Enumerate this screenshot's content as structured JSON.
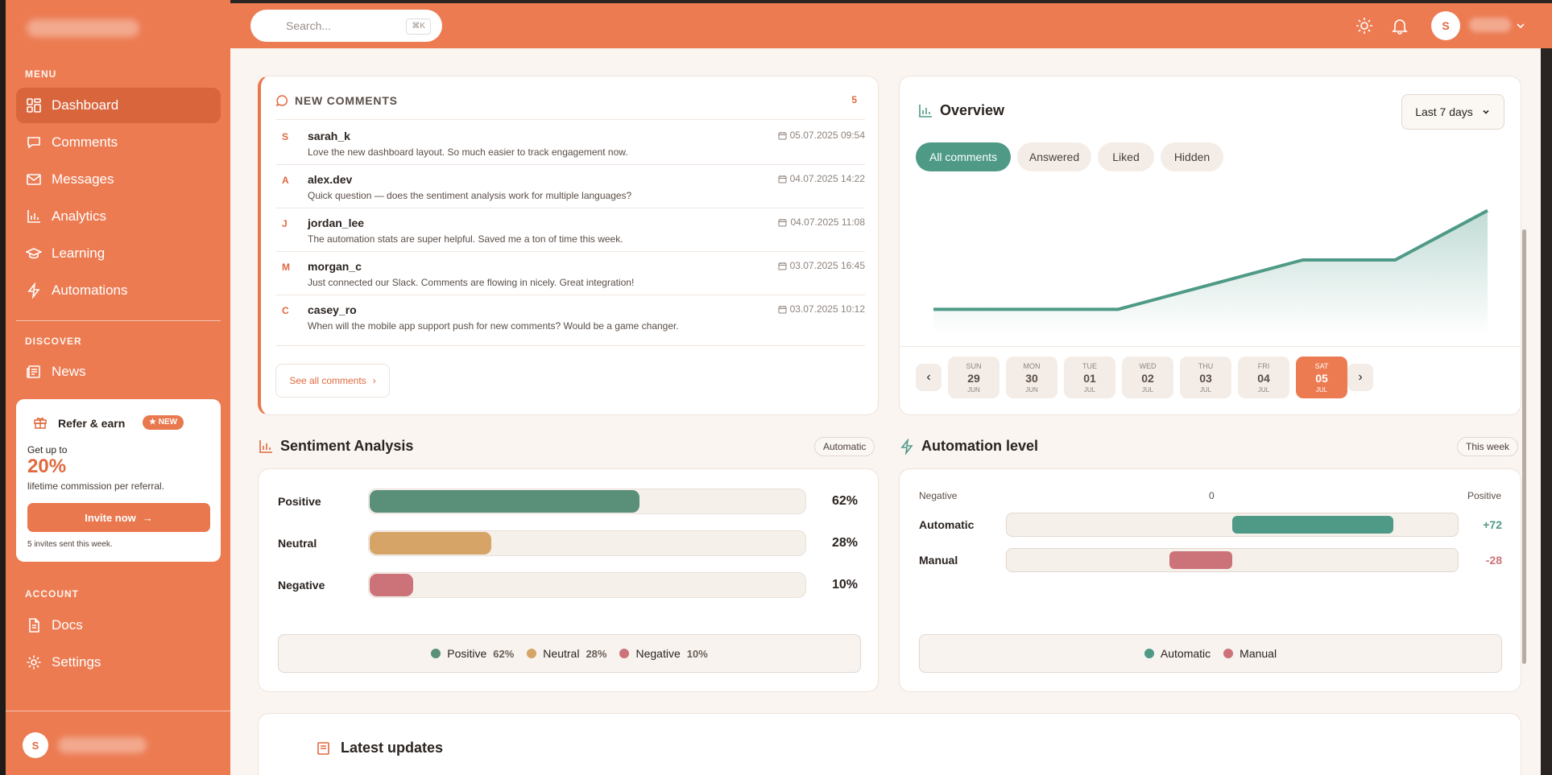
{
  "sidebar": {
    "menu_label": "MENU",
    "discover_label": "DISCOVER",
    "account_label": "ACCOUNT",
    "items": [
      {
        "label": "Dashboard",
        "icon": "dashboard-icon"
      },
      {
        "label": "Comments",
        "icon": "comment-icon"
      },
      {
        "label": "Messages",
        "icon": "mail-icon"
      },
      {
        "label": "Analytics",
        "icon": "bar-chart-icon"
      },
      {
        "label": "Learning",
        "icon": "graduation-cap-icon"
      },
      {
        "label": "Automations",
        "icon": "lightning-icon"
      }
    ],
    "discover_items": [
      {
        "label": "News",
        "icon": "newspaper-icon"
      }
    ],
    "account_items": [
      {
        "label": "Docs",
        "icon": "document-icon"
      },
      {
        "label": "Settings",
        "icon": "gear-icon"
      }
    ],
    "user_initial": "S"
  },
  "refer": {
    "title": "Refer & earn",
    "badge": "★ NEW",
    "line1": "Get up to",
    "percent": "20%",
    "line2": "lifetime commission per referral.",
    "button": "Invite now",
    "note": "5 invites sent this week."
  },
  "topbar": {
    "search_placeholder": "Search...",
    "shortcut": "⌘K",
    "user_initial": "S"
  },
  "comments": {
    "title": "NEW COMMENTS",
    "count": "5",
    "items": [
      {
        "initial": "S",
        "user": "sarah_k",
        "text": "Love the new dashboard layout. So much easier to track engagement now.",
        "date": "05.07.2025 09:54"
      },
      {
        "initial": "A",
        "user": "alex.dev",
        "text": "Quick question — does the sentiment analysis work for multiple languages?",
        "date": "04.07.2025 14:22"
      },
      {
        "initial": "J",
        "user": "jordan_lee",
        "text": "The automation stats are super helpful. Saved me a ton of time this week.",
        "date": "04.07.2025 11:08"
      },
      {
        "initial": "M",
        "user": "morgan_c",
        "text": "Just connected our Slack. Comments are flowing in nicely. Great integration!",
        "date": "03.07.2025 16:45"
      },
      {
        "initial": "C",
        "user": "casey_ro",
        "text": "When will the mobile app support push for new comments? Would be a game changer.",
        "date": "03.07.2025 10:12"
      }
    ],
    "see_all": "See all comments"
  },
  "overview": {
    "title": "Overview",
    "range": "Last 7 days",
    "filters": [
      "All comments",
      "Answered",
      "Liked",
      "Hidden"
    ],
    "active_filter": 0,
    "days": [
      {
        "wd": "SUN",
        "n": "29",
        "m": "JUN"
      },
      {
        "wd": "MON",
        "n": "30",
        "m": "JUN"
      },
      {
        "wd": "TUE",
        "n": "01",
        "m": "JUL"
      },
      {
        "wd": "WED",
        "n": "02",
        "m": "JUL"
      },
      {
        "wd": "THU",
        "n": "03",
        "m": "JUL"
      },
      {
        "wd": "FRI",
        "n": "04",
        "m": "JUL"
      },
      {
        "wd": "SAT",
        "n": "05",
        "m": "JUL"
      }
    ],
    "active_day": 6,
    "accent": "#4e9a87"
  },
  "chart_data": {
    "type": "area",
    "x": [
      "29 JUN",
      "30 JUN",
      "01 JUL",
      "02 JUL",
      "03 JUL",
      "04 JUL",
      "05 JUL"
    ],
    "values": [
      1,
      1,
      1,
      2,
      3,
      3,
      5
    ],
    "ylim": [
      0,
      6
    ],
    "grid": false,
    "title": "",
    "xlabel": "",
    "ylabel": ""
  },
  "sentiment": {
    "title": "Sentiment Analysis",
    "tag": "Automatic",
    "rows": [
      {
        "label": "Positive",
        "value": 62,
        "display": "62%",
        "color": "#5a9079"
      },
      {
        "label": "Neutral",
        "value": 28,
        "display": "28%",
        "color": "#d6a467"
      },
      {
        "label": "Negative",
        "value": 10,
        "display": "10%",
        "color": "#cc7379"
      }
    ]
  },
  "automation": {
    "title": "Automation level",
    "tag": "This week",
    "axis_left": "Negative",
    "axis_mid": "0",
    "axis_right": "Positive",
    "rows": [
      {
        "label": "Automatic",
        "value": 72,
        "display": "+72",
        "color": "#4e9a87"
      },
      {
        "label": "Manual",
        "value": -28,
        "display": "-28",
        "color": "#cc7379"
      }
    ],
    "legend": [
      "Automatic",
      "Manual"
    ]
  },
  "latest": {
    "title": "Latest updates"
  }
}
